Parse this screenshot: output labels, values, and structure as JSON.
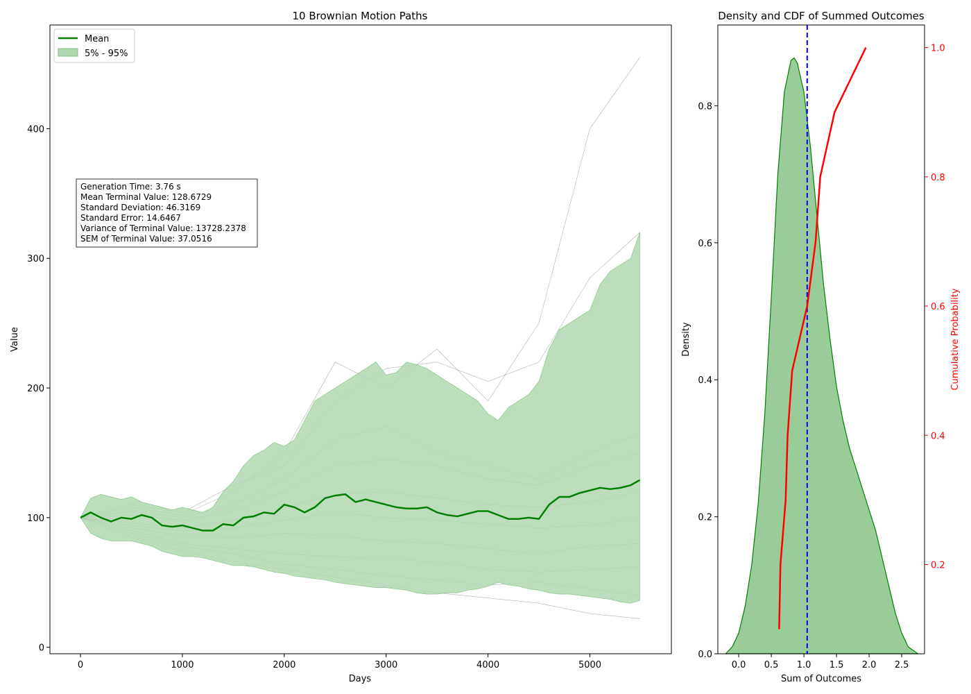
{
  "chart_data": [
    {
      "type": "line",
      "title": "10 Brownian Motion Paths",
      "xlabel": "Days",
      "ylabel": "Value",
      "xlim": [
        -300,
        5800
      ],
      "ylim": [
        -5,
        480
      ],
      "xticks": [
        0,
        1000,
        2000,
        3000,
        4000,
        5000
      ],
      "yticks": [
        0,
        100,
        200,
        300,
        400
      ],
      "legend": {
        "position": "top-left",
        "entries": [
          {
            "label": "Mean",
            "color": "#008000",
            "kind": "line"
          },
          {
            "label": "5% - 95%",
            "color": "#b2d8b2",
            "kind": "patch"
          }
        ]
      },
      "stats_box": [
        "Generation Time: 3.76 s",
        "Mean Terminal Value: 128.6729",
        "Standard Deviation: 46.3169",
        "Standard Error: 14.6467",
        "Variance of Terminal Value: 13728.2378",
        "SEM of Terminal Value: 37.0516"
      ],
      "mean_series": {
        "name": "Mean",
        "color": "#008000",
        "x": [
          0,
          100,
          200,
          300,
          400,
          500,
          600,
          700,
          800,
          900,
          1000,
          1100,
          1200,
          1300,
          1400,
          1500,
          1600,
          1700,
          1800,
          1900,
          2000,
          2100,
          2200,
          2300,
          2400,
          2500,
          2600,
          2700,
          2800,
          2900,
          3000,
          3100,
          3200,
          3300,
          3400,
          3500,
          3600,
          3700,
          3800,
          3900,
          4000,
          4100,
          4200,
          4300,
          4400,
          4500,
          4600,
          4700,
          4800,
          4900,
          5000,
          5100,
          5200,
          5300,
          5400,
          5490
        ],
        "y": [
          100,
          104,
          100,
          97,
          100,
          99,
          102,
          100,
          94,
          93,
          94,
          92,
          90,
          90,
          95,
          94,
          100,
          101,
          104,
          103,
          110,
          108,
          104,
          108,
          115,
          117,
          118,
          112,
          114,
          112,
          110,
          108,
          107,
          107,
          108,
          104,
          102,
          101,
          103,
          105,
          105,
          102,
          99,
          99,
          100,
          99,
          110,
          116,
          116,
          119,
          121,
          123,
          122,
          123,
          125,
          129
        ]
      },
      "band": {
        "name": "5% - 95%",
        "color": "#b2d8b2",
        "x": [
          0,
          100,
          200,
          300,
          400,
          500,
          600,
          700,
          800,
          900,
          1000,
          1100,
          1200,
          1300,
          1400,
          1500,
          1600,
          1700,
          1800,
          1900,
          2000,
          2100,
          2200,
          2300,
          2400,
          2500,
          2600,
          2700,
          2800,
          2900,
          3000,
          3100,
          3200,
          3300,
          3400,
          3500,
          3600,
          3700,
          3800,
          3900,
          4000,
          4100,
          4200,
          4300,
          4400,
          4500,
          4600,
          4700,
          4800,
          4900,
          5000,
          5100,
          5200,
          5300,
          5400,
          5490
        ],
        "lower": [
          100,
          88,
          84,
          82,
          82,
          82,
          80,
          78,
          74,
          72,
          70,
          70,
          69,
          67,
          65,
          63,
          63,
          62,
          60,
          58,
          57,
          55,
          54,
          53,
          52,
          50,
          49,
          48,
          47,
          46,
          46,
          45,
          44,
          42,
          41,
          41,
          42,
          42,
          44,
          45,
          47,
          50,
          48,
          47,
          45,
          44,
          42,
          41,
          41,
          40,
          39,
          38,
          37,
          35,
          34,
          36
        ],
        "upper": [
          100,
          115,
          118,
          116,
          114,
          116,
          112,
          110,
          108,
          106,
          108,
          106,
          104,
          108,
          120,
          128,
          140,
          148,
          152,
          158,
          155,
          160,
          175,
          190,
          195,
          200,
          205,
          210,
          215,
          220,
          210,
          212,
          220,
          218,
          215,
          210,
          205,
          200,
          195,
          190,
          180,
          175,
          185,
          190,
          195,
          205,
          230,
          245,
          250,
          255,
          260,
          280,
          290,
          295,
          300,
          320
        ]
      },
      "paths": [
        {
          "x": [
            0,
            500,
            1000,
            1500,
            2000,
            2500,
            3000,
            3500,
            4000,
            4500,
            5000,
            5490
          ],
          "y": [
            100,
            108,
            102,
            120,
            150,
            220,
            200,
            230,
            190,
            250,
            400,
            455
          ]
        },
        {
          "x": [
            0,
            500,
            1000,
            1500,
            2000,
            2500,
            3000,
            3500,
            4000,
            4500,
            5000,
            5490
          ],
          "y": [
            100,
            110,
            104,
            125,
            140,
            190,
            215,
            220,
            205,
            220,
            285,
            320
          ]
        },
        {
          "x": [
            0,
            500,
            1000,
            1500,
            2000,
            2500,
            3000,
            3500,
            4000,
            4500,
            5000,
            5490
          ],
          "y": [
            100,
            105,
            100,
            110,
            130,
            160,
            170,
            150,
            140,
            130,
            150,
            165
          ]
        },
        {
          "x": [
            0,
            500,
            1000,
            1500,
            2000,
            2500,
            3000,
            3500,
            4000,
            4500,
            5000,
            5490
          ],
          "y": [
            100,
            102,
            98,
            105,
            120,
            140,
            145,
            140,
            130,
            125,
            140,
            150
          ]
        },
        {
          "x": [
            0,
            500,
            1000,
            1500,
            2000,
            2500,
            3000,
            3500,
            4000,
            4500,
            5000,
            5490
          ],
          "y": [
            100,
            96,
            92,
            98,
            108,
            118,
            120,
            115,
            110,
            108,
            112,
            120
          ]
        },
        {
          "x": [
            0,
            500,
            1000,
            1500,
            2000,
            2500,
            3000,
            3500,
            4000,
            4500,
            5000,
            5490
          ],
          "y": [
            100,
            94,
            90,
            92,
            98,
            104,
            100,
            98,
            95,
            92,
            94,
            100
          ]
        },
        {
          "x": [
            0,
            500,
            1000,
            1500,
            2000,
            2500,
            3000,
            3500,
            4000,
            4500,
            5000,
            5490
          ],
          "y": [
            100,
            92,
            86,
            84,
            88,
            86,
            82,
            80,
            76,
            72,
            78,
            80
          ]
        },
        {
          "x": [
            0,
            500,
            1000,
            1500,
            2000,
            2500,
            3000,
            3500,
            4000,
            4500,
            5000,
            5490
          ],
          "y": [
            100,
            90,
            80,
            76,
            72,
            70,
            68,
            66,
            60,
            58,
            60,
            62
          ]
        },
        {
          "x": [
            0,
            500,
            1000,
            1500,
            2000,
            2500,
            3000,
            3500,
            4000,
            4500,
            5000,
            5490
          ],
          "y": [
            100,
            88,
            78,
            72,
            64,
            60,
            55,
            52,
            48,
            50,
            45,
            40
          ]
        },
        {
          "x": [
            0,
            500,
            1000,
            1500,
            2000,
            2500,
            3000,
            3500,
            4000,
            4500,
            5000,
            5490
          ],
          "y": [
            100,
            85,
            74,
            66,
            60,
            54,
            48,
            42,
            38,
            34,
            26,
            22
          ]
        }
      ]
    },
    {
      "type": "area",
      "title": "Density and CDF of Summed Outcomes",
      "xlabel": "Sum of Outcomes",
      "ylabel": "Density",
      "y2label": "Cumulative Probability",
      "xlim": [
        -0.32,
        2.85
      ],
      "ylim": [
        0,
        0.918
      ],
      "y2lim": [
        0.062,
        1.035
      ],
      "xticks": [
        "0.0",
        "0.5",
        "1.0",
        "1.5",
        "2.0",
        "2.5"
      ],
      "yticks": [
        "0.0",
        "0.2",
        "0.4",
        "0.6",
        "0.8"
      ],
      "y2ticks": [
        "0.2",
        "0.4",
        "0.6",
        "0.8",
        "1.0"
      ],
      "vline": {
        "x": 1.05,
        "color": "#0000ff"
      },
      "density": {
        "color": "#99cc99",
        "edge": "#008000",
        "x": [
          -0.2,
          -0.1,
          0.0,
          0.1,
          0.2,
          0.3,
          0.4,
          0.5,
          0.6,
          0.7,
          0.8,
          0.85,
          0.9,
          1.0,
          1.1,
          1.2,
          1.3,
          1.4,
          1.5,
          1.6,
          1.7,
          1.8,
          1.9,
          2.0,
          2.1,
          2.2,
          2.3,
          2.4,
          2.5,
          2.6,
          2.75
        ],
        "y": [
          0.0,
          0.01,
          0.03,
          0.07,
          0.13,
          0.22,
          0.35,
          0.52,
          0.7,
          0.82,
          0.866,
          0.87,
          0.862,
          0.82,
          0.74,
          0.64,
          0.54,
          0.46,
          0.39,
          0.34,
          0.3,
          0.27,
          0.24,
          0.21,
          0.18,
          0.14,
          0.1,
          0.06,
          0.03,
          0.01,
          0.0
        ]
      },
      "cdf": {
        "color": "#ff0000",
        "x": [
          0.62,
          0.64,
          0.72,
          0.75,
          0.82,
          1.05,
          1.18,
          1.25,
          1.47,
          1.95
        ],
        "y": [
          0.1,
          0.2,
          0.3,
          0.4,
          0.5,
          0.6,
          0.7,
          0.8,
          0.9,
          1.0
        ]
      }
    }
  ]
}
